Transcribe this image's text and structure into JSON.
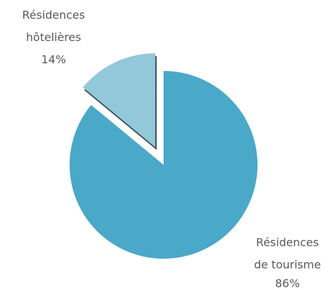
{
  "chart_data": {
    "type": "pie",
    "categories": [
      "Résidences de tourisme",
      "Résidences hôtelières"
    ],
    "values": [
      86,
      14
    ],
    "value_labels": [
      "86%",
      "14%"
    ],
    "colors": [
      "#4aa8c9",
      "#93c7da"
    ],
    "exploded": [
      false,
      true
    ]
  }
}
